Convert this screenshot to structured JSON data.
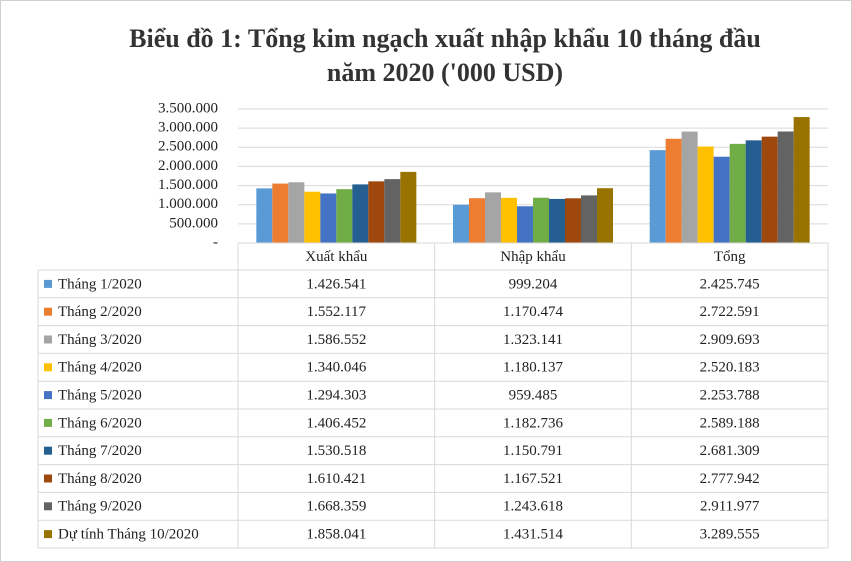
{
  "chart_data": {
    "type": "bar",
    "title": "Biểu đồ 1: Tổng kim ngạch xuất nhập khẩu 10 tháng đầu năm 2020 ('000 USD)",
    "categories": [
      "Xuất khẩu",
      "Nhập khẩu",
      "Tổng"
    ],
    "ylim": [
      0,
      3500000
    ],
    "yticks": [
      {
        "value": 0,
        "label": "-"
      },
      {
        "value": 500000,
        "label": "500.000"
      },
      {
        "value": 1000000,
        "label": "1.000.000"
      },
      {
        "value": 1500000,
        "label": "1.500.000"
      },
      {
        "value": 2000000,
        "label": "2.000.000"
      },
      {
        "value": 2500000,
        "label": "2.500.000"
      },
      {
        "value": 3000000,
        "label": "3.000.000"
      },
      {
        "value": 3500000,
        "label": "3.500.000"
      }
    ],
    "grid": true,
    "series": [
      {
        "name": "Tháng 1/2020",
        "color": "#5b9bd5",
        "values": [
          1426541,
          999204,
          2425745
        ],
        "value_labels": [
          "1.426.541",
          "999.204",
          "2.425.745"
        ]
      },
      {
        "name": "Tháng 2/2020",
        "color": "#ed7d31",
        "values": [
          1552117,
          1170474,
          2722591
        ],
        "value_labels": [
          "1.552.117",
          "1.170.474",
          "2.722.591"
        ]
      },
      {
        "name": "Tháng 3/2020",
        "color": "#a5a5a5",
        "values": [
          1586552,
          1323141,
          2909693
        ],
        "value_labels": [
          "1.586.552",
          "1.323.141",
          "2.909.693"
        ]
      },
      {
        "name": "Tháng 4/2020",
        "color": "#ffc000",
        "values": [
          1340046,
          1180137,
          2520183
        ],
        "value_labels": [
          "1.340.046",
          "1.180.137",
          "2.520.183"
        ]
      },
      {
        "name": "Tháng 5/2020",
        "color": "#4472c4",
        "values": [
          1294303,
          959485,
          2253788
        ],
        "value_labels": [
          "1.294.303",
          "959.485",
          "2.253.788"
        ]
      },
      {
        "name": "Tháng 6/2020",
        "color": "#70ad47",
        "values": [
          1406452,
          1182736,
          2589188
        ],
        "value_labels": [
          "1.406.452",
          "1.182.736",
          "2.589.188"
        ]
      },
      {
        "name": "Tháng 7/2020",
        "color": "#255e91",
        "values": [
          1530518,
          1150791,
          2681309
        ],
        "value_labels": [
          "1.530.518",
          "1.150.791",
          "2.681.309"
        ]
      },
      {
        "name": "Tháng 8/2020",
        "color": "#9e480e",
        "values": [
          1610421,
          1167521,
          2777942
        ],
        "value_labels": [
          "1.610.421",
          "1.167.521",
          "2.777.942"
        ]
      },
      {
        "name": "Tháng 9/2020",
        "color": "#636363",
        "values": [
          1668359,
          1243618,
          2911977
        ],
        "value_labels": [
          "1.668.359",
          "1.243.618",
          "2.911.977"
        ]
      },
      {
        "name": "Dự tính Tháng 10/2020",
        "color": "#997300",
        "values": [
          1858041,
          1431514,
          3289555
        ],
        "value_labels": [
          "1.858.041",
          "1.431.514",
          "3.289.555"
        ]
      }
    ]
  }
}
